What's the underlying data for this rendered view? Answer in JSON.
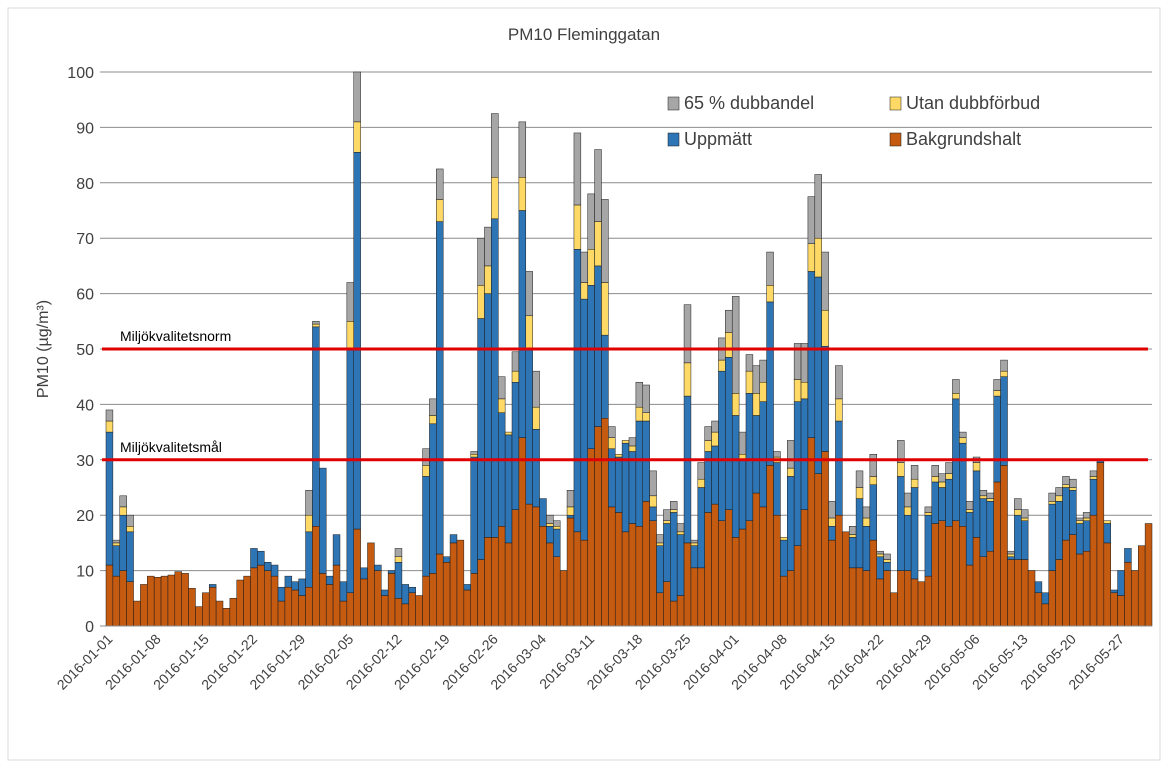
{
  "chart_data": {
    "type": "stacked_bar",
    "title": "PM10 Fleminggatan",
    "y_label": "PM10 (µg/m³)",
    "categories": [
      "2016-01-01",
      null,
      null,
      null,
      null,
      null,
      null,
      "2016-01-08",
      null,
      null,
      null,
      null,
      null,
      null,
      "2016-01-15",
      null,
      null,
      null,
      null,
      null,
      null,
      "2016-01-22",
      null,
      null,
      null,
      null,
      null,
      null,
      "2016-01-29",
      null,
      null,
      null,
      null,
      null,
      null,
      "2016-02-05",
      null,
      null,
      null,
      null,
      null,
      null,
      "2016-02-12",
      null,
      null,
      null,
      null,
      null,
      null,
      "2016-02-19",
      null,
      null,
      null,
      null,
      null,
      null,
      "2016-02-26",
      null,
      null,
      null,
      null,
      null,
      null,
      "2016-03-04",
      null,
      null,
      null,
      null,
      null,
      null,
      "2016-03-11",
      null,
      null,
      null,
      null,
      null,
      null,
      "2016-03-18",
      null,
      null,
      null,
      null,
      null,
      null,
      "2016-03-25",
      null,
      null,
      null,
      null,
      null,
      null,
      "2016-04-01",
      null,
      null,
      null,
      null,
      null,
      null,
      "2016-04-08",
      null,
      null,
      null,
      null,
      null,
      null,
      "2016-04-15",
      null,
      null,
      null,
      null,
      null,
      null,
      "2016-04-22",
      null,
      null,
      null,
      null,
      null,
      null,
      "2016-04-29",
      null,
      null,
      null,
      null,
      null,
      null,
      "2016-05-06",
      null,
      null,
      null,
      null,
      null,
      null,
      "2016-05-13",
      null,
      null,
      null,
      null,
      null,
      null,
      "2016-05-20",
      null,
      null,
      null,
      null,
      null,
      null,
      "2016-05-27",
      null,
      null,
      null,
      null
    ],
    "series": [
      {
        "name": "Bakgrundshalt",
        "color": "#c55a11",
        "values": [
          11,
          9,
          10,
          8,
          4.5,
          7.5,
          9,
          8.8,
          9,
          9.2,
          9.8,
          9.5,
          6.8,
          3.5,
          6,
          7,
          4.5,
          3.2,
          5,
          8.3,
          9,
          10.5,
          11,
          10,
          9,
          4.5,
          7,
          6.5,
          5.5,
          7,
          18,
          9.5,
          7.5,
          11,
          4.5,
          6,
          17.5,
          8.5,
          15,
          10,
          5.5,
          9.5,
          5,
          4,
          6,
          5.5,
          9,
          9.5,
          13,
          11.5,
          15,
          15.5,
          6.5,
          9.5,
          12,
          16,
          16,
          18,
          15,
          21,
          34,
          22,
          21.5,
          18,
          15,
          12.5,
          10,
          19.5,
          17,
          15.5,
          32,
          36,
          37.5,
          21.5,
          20.5,
          17,
          18.5,
          18,
          22.5,
          19,
          6,
          8,
          4.5,
          5.5,
          15,
          10.5,
          10.5,
          20.5,
          22,
          19,
          21,
          16,
          17.5,
          19,
          24,
          21.5,
          29,
          20,
          9,
          10,
          14.5,
          21,
          34,
          27.5,
          31.5,
          15.5,
          20,
          17,
          10.5,
          10.5,
          10,
          15.5,
          8.5,
          10,
          6,
          10,
          10,
          8.5,
          8,
          9,
          18.5,
          19,
          18,
          19,
          18,
          11,
          16,
          12.5,
          13.5,
          26,
          29,
          12,
          12,
          12,
          10,
          6,
          4,
          10,
          12,
          15.5,
          16.5,
          13,
          13.5,
          20,
          29.5,
          15,
          6,
          5.5,
          11.5,
          10,
          14.5,
          18.5
        ]
      },
      {
        "name": "Uppmätt",
        "color": "#2e75b6",
        "values": [
          24,
          5.5,
          10,
          9,
          0,
          0,
          0,
          0,
          0,
          0,
          0,
          0,
          0,
          0,
          0,
          0.5,
          0,
          0,
          0,
          0,
          0,
          3.5,
          2.5,
          1.5,
          2,
          2.5,
          2,
          1.5,
          3,
          10,
          36,
          19,
          1.5,
          5.5,
          3.5,
          44,
          68,
          2,
          0,
          1,
          1,
          0.5,
          6.5,
          3.5,
          1,
          0,
          18,
          27,
          60,
          1,
          1.5,
          0,
          1,
          21,
          43.5,
          44,
          57.5,
          20.5,
          19.5,
          23,
          41,
          28,
          14,
          5,
          3,
          5,
          0,
          0.5,
          51,
          43.5,
          29.5,
          29,
          15,
          10.5,
          10,
          16,
          13,
          19,
          14.5,
          2.5,
          8.5,
          10.5,
          16,
          11,
          26.5,
          4,
          14.5,
          11,
          10.5,
          27,
          27.5,
          22,
          12.5,
          23,
          14,
          19,
          29.5,
          9.5,
          6.5,
          17,
          26,
          20,
          30,
          35.5,
          19,
          2.5,
          17,
          0,
          5.5,
          12.5,
          8,
          10,
          4,
          1.5,
          0,
          17,
          10,
          16.5,
          0,
          11,
          7.5,
          6,
          8.5,
          22,
          15,
          9.5,
          12,
          10.5,
          9,
          15.5,
          16,
          0.5,
          8,
          7,
          0,
          2,
          2,
          12,
          10.5,
          9.5,
          8,
          5.5,
          5.5,
          6.5,
          0.5,
          3.5,
          0.5,
          4.5,
          2.5,
          0,
          0,
          0
        ]
      },
      {
        "name": "Utan dubbförbud",
        "color": "#ffd966",
        "values": [
          2,
          0.5,
          1.5,
          1,
          0,
          0,
          0,
          0,
          0,
          0,
          0,
          0,
          0,
          0,
          0,
          0,
          0,
          0,
          0,
          0,
          0,
          0,
          0,
          0,
          0,
          0,
          0,
          0,
          0,
          3,
          0.5,
          0,
          0,
          0,
          0,
          5,
          5.5,
          0,
          0,
          0,
          0,
          0,
          1,
          0,
          0,
          0,
          2,
          1.5,
          4,
          0,
          0,
          0,
          0,
          0.5,
          6,
          5,
          7.5,
          2.5,
          0.5,
          2,
          6,
          6,
          4,
          0,
          0.5,
          0.5,
          0,
          1.5,
          8,
          3,
          6.5,
          8,
          9.5,
          2,
          0.5,
          0.5,
          1,
          2.5,
          1.5,
          2,
          0.5,
          0.5,
          0.5,
          0.5,
          6,
          0.5,
          1.5,
          2,
          2.5,
          2,
          4.5,
          4,
          1,
          4,
          4,
          3.5,
          3,
          1,
          0.5,
          1.5,
          4,
          3,
          5,
          7,
          6.5,
          1.5,
          4,
          0,
          0.5,
          2,
          1.5,
          1.5,
          0.5,
          0.5,
          0,
          2.5,
          1.5,
          1.5,
          0,
          0.5,
          1,
          1,
          1,
          1,
          1,
          0.5,
          1.5,
          0.5,
          0.5,
          1,
          1,
          0.5,
          1,
          0.5,
          0,
          0,
          0,
          0.5,
          1,
          0.5,
          0.5,
          0.5,
          0.5,
          0.5,
          0,
          0.5,
          0,
          0,
          0,
          0,
          0,
          0
        ]
      },
      {
        "name": "65 % dubbandel",
        "color": "#a6a6a6",
        "values": [
          2,
          0.5,
          2,
          2,
          0,
          0,
          0,
          0,
          0,
          0,
          0,
          0,
          0,
          0,
          0,
          0,
          0,
          0,
          0,
          0,
          0,
          0,
          0,
          0,
          0,
          0,
          0,
          0,
          0,
          4.5,
          0.5,
          0,
          0,
          0,
          0,
          7,
          9,
          0,
          0,
          0,
          0,
          0,
          1.5,
          0,
          0,
          0,
          3,
          3,
          5.5,
          0,
          0,
          0,
          0,
          0.5,
          8.5,
          7,
          11.5,
          4,
          0,
          3.5,
          10,
          8,
          6.5,
          0,
          1.5,
          1,
          0,
          3,
          13,
          5.5,
          10,
          13,
          15,
          2,
          0,
          0,
          1.5,
          4.5,
          5,
          4.5,
          1.5,
          2,
          1.5,
          1.5,
          10.5,
          0.5,
          3,
          2.5,
          2,
          4,
          4,
          17.5,
          4,
          3,
          5,
          4,
          6,
          1,
          0,
          5,
          6.5,
          7,
          8.5,
          11.5,
          10.5,
          3,
          6,
          0,
          1.5,
          3,
          2,
          4,
          0.5,
          1,
          0,
          4,
          2.5,
          2.5,
          0,
          1,
          2,
          1.5,
          2,
          2.5,
          1,
          1.5,
          1,
          1,
          1,
          2,
          2,
          0.5,
          2,
          1.5,
          0,
          0,
          0,
          1.5,
          1.5,
          1.5,
          1.5,
          0.5,
          1,
          1,
          0,
          0,
          0,
          0,
          0,
          0,
          0,
          0
        ]
      }
    ],
    "reference_lines": [
      {
        "label": "Miljökvalitetsnorm",
        "value": 50,
        "color": "#e00000"
      },
      {
        "label": "Miljökvalitetsmål",
        "value": 30,
        "color": "#e00000"
      }
    ],
    "ylim": [
      0,
      100
    ],
    "yticks": [
      0,
      10,
      20,
      30,
      40,
      50,
      60,
      70,
      80,
      90,
      100
    ],
    "grid": true,
    "legend": "top-right"
  }
}
